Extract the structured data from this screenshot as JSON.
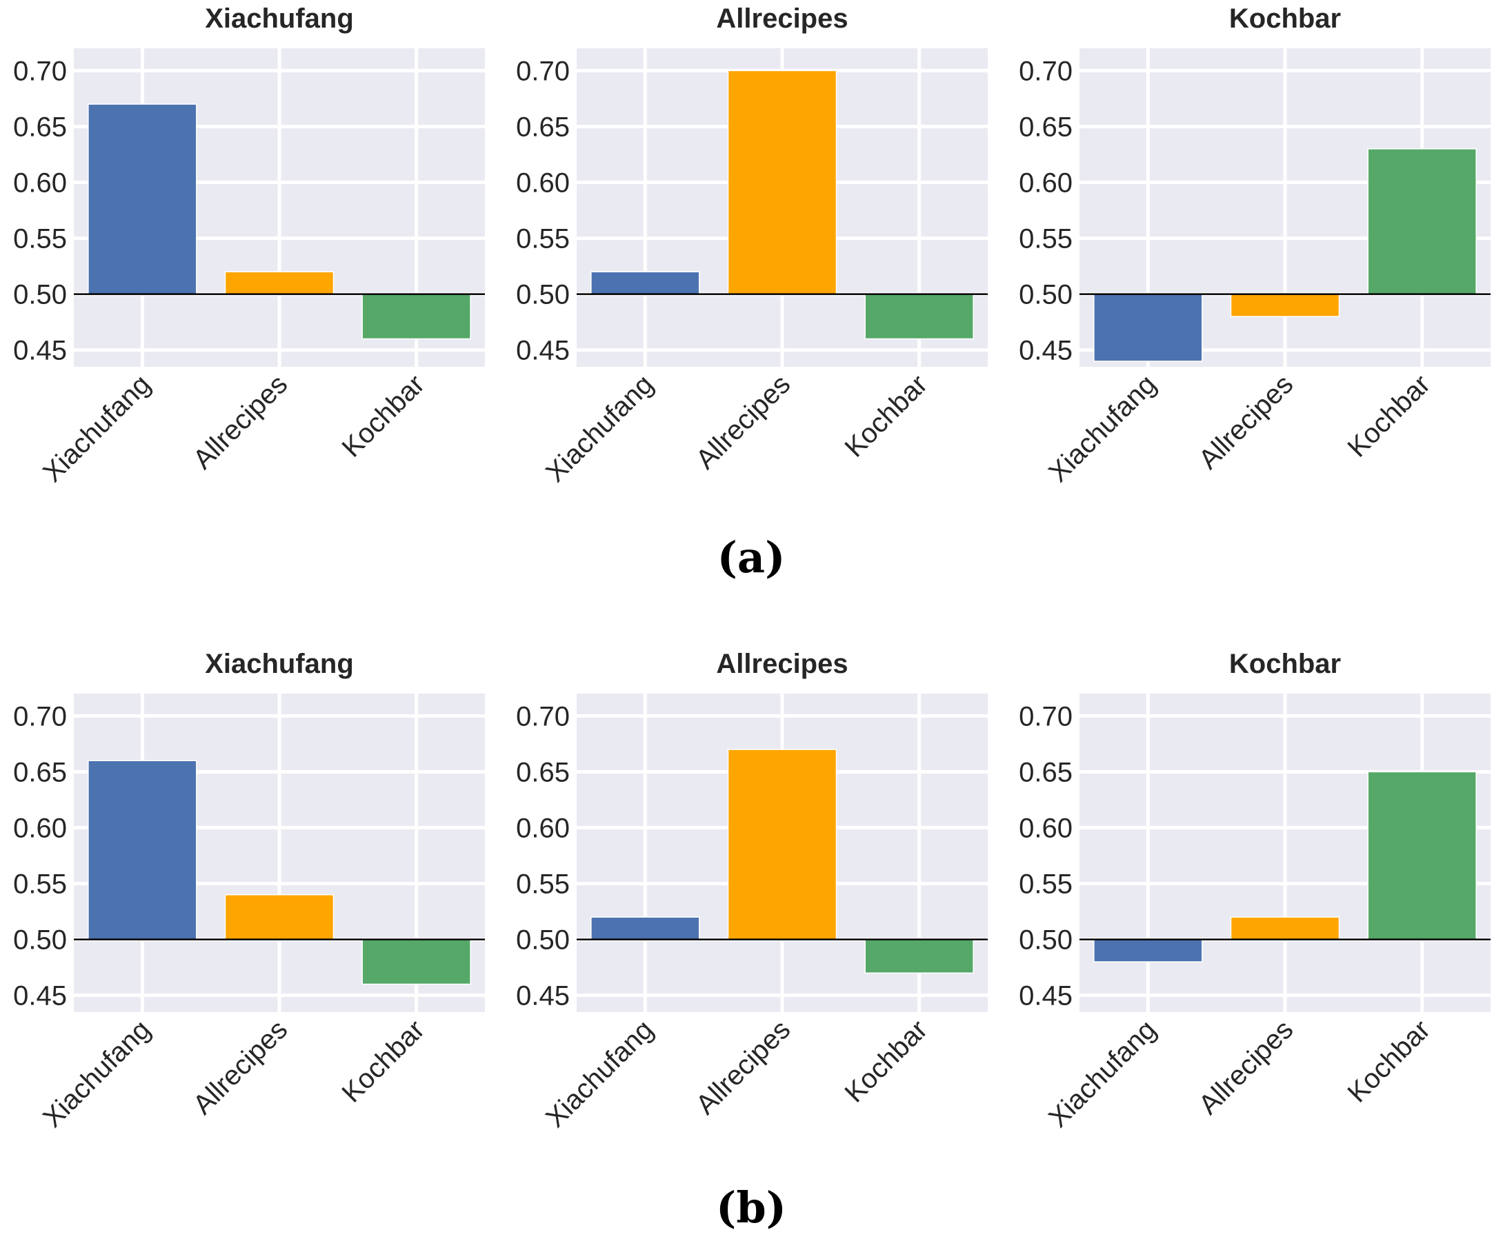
{
  "figure": {
    "caption_a": "(a)",
    "caption_b": "(b)"
  },
  "colors": {
    "Xiachufang": "#4c72b0",
    "Allrecipes": "#ffa500",
    "Kochbar": "#55a868",
    "background": "#eaeaf2",
    "grid": "#ffffff",
    "baseline": "#000000"
  },
  "chart_data": [
    {
      "panel": "a",
      "type": "bar",
      "title": "Xiachufang",
      "categories": [
        "Xiachufang",
        "Allrecipes",
        "Kochbar"
      ],
      "values": [
        0.67,
        0.52,
        0.46
      ],
      "baseline": 0.5,
      "ylim": [
        0.435,
        0.72
      ],
      "yticks": [
        "0.45",
        "0.50",
        "0.55",
        "0.60",
        "0.65",
        "0.70"
      ],
      "xlabel": "",
      "ylabel": ""
    },
    {
      "panel": "a",
      "type": "bar",
      "title": "Allrecipes",
      "categories": [
        "Xiachufang",
        "Allrecipes",
        "Kochbar"
      ],
      "values": [
        0.52,
        0.7,
        0.46
      ],
      "baseline": 0.5,
      "ylim": [
        0.435,
        0.72
      ],
      "yticks": [
        "0.45",
        "0.50",
        "0.55",
        "0.60",
        "0.65",
        "0.70"
      ],
      "xlabel": "",
      "ylabel": ""
    },
    {
      "panel": "a",
      "type": "bar",
      "title": "Kochbar",
      "categories": [
        "Xiachufang",
        "Allrecipes",
        "Kochbar"
      ],
      "values": [
        0.44,
        0.48,
        0.63
      ],
      "baseline": 0.5,
      "ylim": [
        0.435,
        0.72
      ],
      "yticks": [
        "0.45",
        "0.50",
        "0.55",
        "0.60",
        "0.65",
        "0.70"
      ],
      "xlabel": "",
      "ylabel": ""
    },
    {
      "panel": "b",
      "type": "bar",
      "title": "Xiachufang",
      "categories": [
        "Xiachufang",
        "Allrecipes",
        "Kochbar"
      ],
      "values": [
        0.66,
        0.54,
        0.46
      ],
      "baseline": 0.5,
      "ylim": [
        0.435,
        0.72
      ],
      "yticks": [
        "0.45",
        "0.50",
        "0.55",
        "0.60",
        "0.65",
        "0.70"
      ],
      "xlabel": "",
      "ylabel": ""
    },
    {
      "panel": "b",
      "type": "bar",
      "title": "Allrecipes",
      "categories": [
        "Xiachufang",
        "Allrecipes",
        "Kochbar"
      ],
      "values": [
        0.52,
        0.67,
        0.47
      ],
      "baseline": 0.5,
      "ylim": [
        0.435,
        0.72
      ],
      "yticks": [
        "0.45",
        "0.50",
        "0.55",
        "0.60",
        "0.65",
        "0.70"
      ],
      "xlabel": "",
      "ylabel": ""
    },
    {
      "panel": "b",
      "type": "bar",
      "title": "Kochbar",
      "categories": [
        "Xiachufang",
        "Allrecipes",
        "Kochbar"
      ],
      "values": [
        0.48,
        0.52,
        0.65
      ],
      "baseline": 0.5,
      "ylim": [
        0.435,
        0.72
      ],
      "yticks": [
        "0.45",
        "0.50",
        "0.55",
        "0.60",
        "0.65",
        "0.70"
      ],
      "xlabel": "",
      "ylabel": ""
    }
  ]
}
